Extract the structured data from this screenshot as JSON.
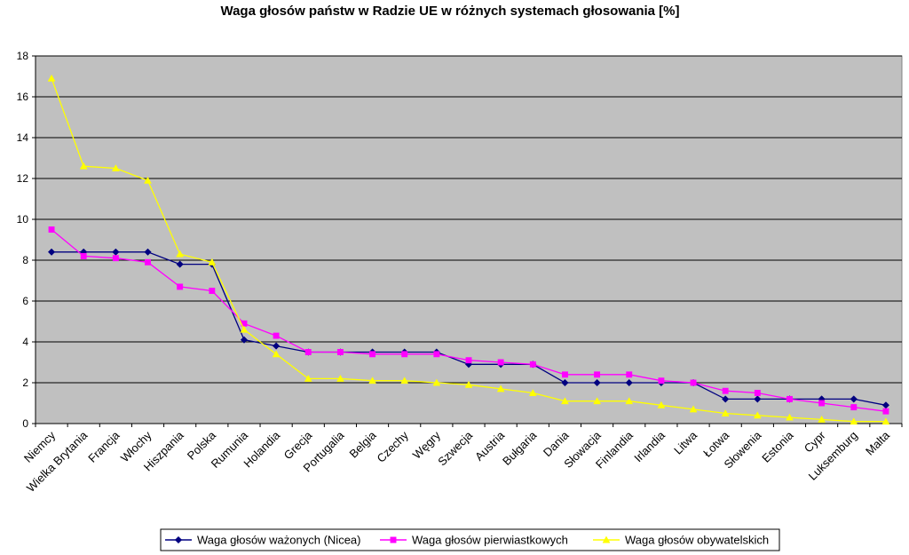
{
  "chart_data": {
    "type": "line",
    "title": "Waga głosów państw w Radzie UE w różnych systemach głosowania [%]",
    "xlabel": "",
    "ylabel": "",
    "ylim": [
      0,
      18
    ],
    "yticks": [
      "0",
      "2",
      "4",
      "6",
      "8",
      "10",
      "12",
      "14",
      "16",
      "18"
    ],
    "grid": true,
    "legend_position": "bottom",
    "categories": [
      "Niemcy",
      "Wielka Brytania",
      "Francja",
      "Włochy",
      "Hiszpania",
      "Polska",
      "Rumunia",
      "Holandia",
      "Grecja",
      "Portugalia",
      "Belgia",
      "Czechy",
      "Węgry",
      "Szwecja",
      "Austria",
      "Bułgaria",
      "Dania",
      "Słowacja",
      "Finlandia",
      "Irlandia",
      "Litwa",
      "Łotwa",
      "Słowenia",
      "Estonia",
      "Cypr",
      "Luksemburg",
      "Malta"
    ],
    "series": [
      {
        "name": "Waga głosów ważonych (Nicea)",
        "color": "#000080",
        "marker": "diamond",
        "values": [
          8.4,
          8.4,
          8.4,
          8.4,
          7.8,
          7.8,
          4.1,
          3.8,
          3.5,
          3.5,
          3.5,
          3.5,
          3.5,
          2.9,
          2.9,
          2.9,
          2.0,
          2.0,
          2.0,
          2.0,
          2.0,
          1.2,
          1.2,
          1.2,
          1.2,
          1.2,
          0.9
        ]
      },
      {
        "name": "Waga głosów pierwiastkowych",
        "color": "#FF00FF",
        "marker": "square",
        "values": [
          9.5,
          8.2,
          8.1,
          7.9,
          6.7,
          6.5,
          4.9,
          4.3,
          3.5,
          3.5,
          3.4,
          3.4,
          3.4,
          3.1,
          3.0,
          2.9,
          2.4,
          2.4,
          2.4,
          2.1,
          2.0,
          1.6,
          1.5,
          1.2,
          1.0,
          0.8,
          0.6
        ]
      },
      {
        "name": "Waga głosów obywatelskich",
        "color": "#FFFF00",
        "marker": "triangle",
        "values": [
          16.9,
          12.6,
          12.5,
          11.9,
          8.3,
          7.9,
          4.6,
          3.4,
          2.2,
          2.2,
          2.1,
          2.1,
          2.0,
          1.9,
          1.7,
          1.5,
          1.1,
          1.1,
          1.1,
          0.9,
          0.7,
          0.5,
          0.4,
          0.3,
          0.2,
          0.1,
          0.1
        ]
      }
    ]
  }
}
